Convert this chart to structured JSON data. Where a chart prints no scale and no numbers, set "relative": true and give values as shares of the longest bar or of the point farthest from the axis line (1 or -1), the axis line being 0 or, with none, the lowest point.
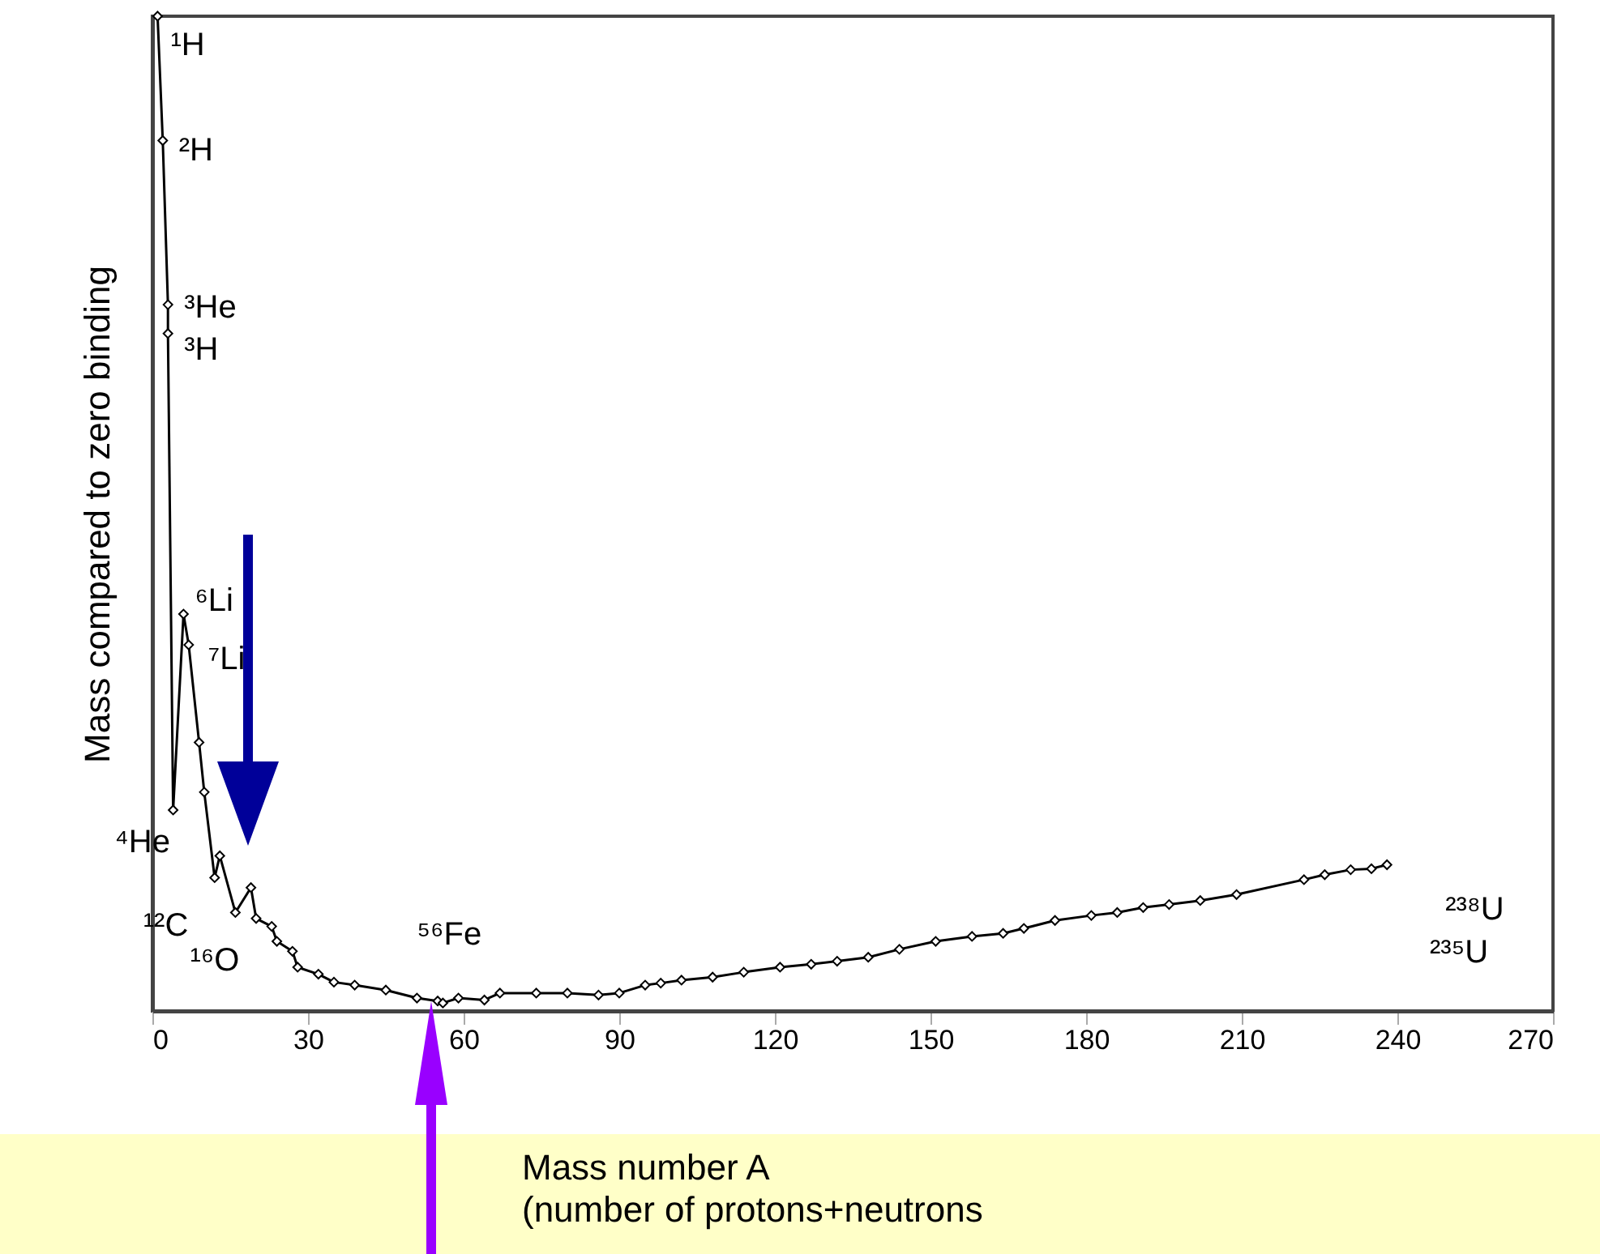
{
  "chart_data": {
    "type": "line",
    "xlabel": "Mass number A\n(number of protons+neutrons",
    "ylabel": "Mass compared to zero binding",
    "relative": true,
    "marker": "diamond",
    "line_style": "solid",
    "grid": false,
    "xlim": [
      0,
      270
    ],
    "xticks": [
      0,
      30,
      60,
      90,
      120,
      150,
      180,
      210,
      240,
      270
    ],
    "series": [
      {
        "color": "#000000",
        "x": [
          1,
          2,
          3,
          3,
          4,
          6,
          7,
          9,
          10,
          12,
          13,
          16,
          19,
          20,
          23,
          24,
          27,
          28,
          32,
          35,
          39,
          45,
          51,
          55,
          56,
          59,
          64,
          67,
          74,
          80,
          86,
          90,
          95,
          98,
          102,
          108,
          114,
          121,
          127,
          132,
          138,
          144,
          151,
          158,
          164,
          168,
          174,
          181,
          186,
          191,
          196,
          202,
          209,
          222,
          226,
          231,
          235,
          238
        ],
        "values": [
          1.0,
          0.875,
          0.71,
          0.681,
          0.202,
          0.399,
          0.368,
          0.27,
          0.22,
          0.134,
          0.156,
          0.099,
          0.124,
          0.093,
          0.085,
          0.07,
          0.06,
          0.044,
          0.037,
          0.029,
          0.026,
          0.021,
          0.013,
          0.01,
          0.008,
          0.013,
          0.011,
          0.018,
          0.018,
          0.018,
          0.016,
          0.018,
          0.026,
          0.028,
          0.031,
          0.034,
          0.039,
          0.044,
          0.047,
          0.05,
          0.054,
          0.062,
          0.07,
          0.075,
          0.078,
          0.083,
          0.091,
          0.096,
          0.099,
          0.104,
          0.107,
          0.111,
          0.117,
          0.132,
          0.137,
          0.142,
          0.143,
          0.147
        ]
      }
    ],
    "annotations": [
      {
        "text": "¹H",
        "x": 1,
        "y": 1.0
      },
      {
        "text": "²H",
        "x": 2,
        "y": 0.875
      },
      {
        "text": "³He",
        "x": 3,
        "y": 0.71
      },
      {
        "text": "³H",
        "x": 3,
        "y": 0.681
      },
      {
        "text": "⁴He",
        "x": 4,
        "y": 0.202
      },
      {
        "text": "⁶Li",
        "x": 6,
        "y": 0.399
      },
      {
        "text": "⁷Li",
        "x": 7,
        "y": 0.368
      },
      {
        "text": "¹²C",
        "x": 12,
        "y": 0.134
      },
      {
        "text": "¹⁶O",
        "x": 16,
        "y": 0.099
      },
      {
        "text": "⁵⁶Fe",
        "x": 56,
        "y": 0.008
      },
      {
        "text": "²³⁵U",
        "x": 235,
        "y": 0.143
      },
      {
        "text": "²³⁸U",
        "x": 238,
        "y": 0.147
      }
    ]
  }
}
